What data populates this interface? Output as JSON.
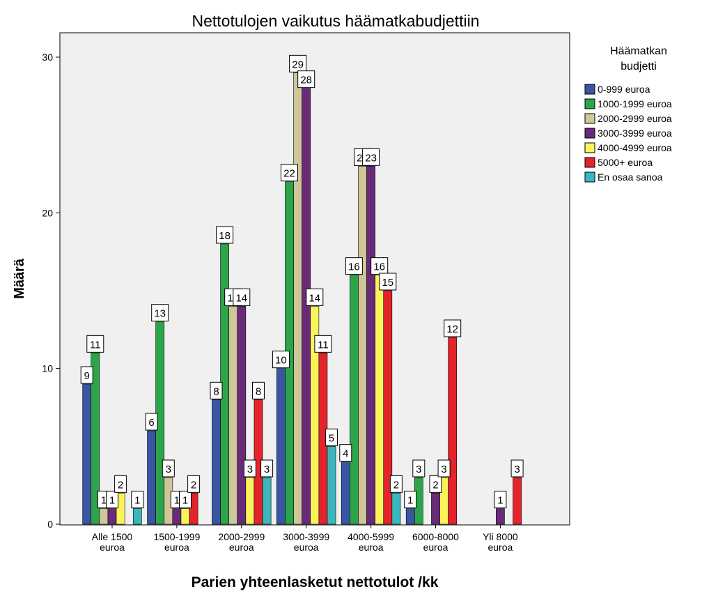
{
  "chart_data": {
    "type": "bar",
    "title": "Nettotulojen vaikutus häämatkabudjettiin",
    "xlabel": "Parien yhteenlasketut nettotulot /kk",
    "ylabel": "Määrä",
    "ylim": [
      0,
      30
    ],
    "yticks": [
      0,
      10,
      20,
      30
    ],
    "grid": false,
    "legend_position": "right",
    "legend_title": [
      "Häämatkan",
      "budjetti"
    ],
    "categories": [
      [
        "Alle 1500",
        "euroa"
      ],
      [
        "1500-1999",
        "euroa"
      ],
      [
        "2000-2999",
        "euroa"
      ],
      [
        "3000-3999",
        "euroa"
      ],
      [
        "4000-5999",
        "euroa"
      ],
      [
        "6000-8000",
        "euroa"
      ],
      [
        "Yli 8000",
        "euroa"
      ]
    ],
    "series": [
      {
        "name": "0-999 euroa",
        "color": "#3a55a4",
        "values": [
          9,
          6,
          8,
          10,
          4,
          1,
          null
        ]
      },
      {
        "name": "1000-1999 euroa",
        "color": "#2ca54a",
        "values": [
          11,
          13,
          18,
          22,
          16,
          3,
          null
        ]
      },
      {
        "name": "2000-2999 euroa",
        "color": "#cfc79a",
        "values": [
          1,
          3,
          14,
          29,
          23,
          null,
          null
        ]
      },
      {
        "name": "3000-3999 euroa",
        "color": "#6a2a7a",
        "values": [
          1,
          1,
          14,
          28,
          23,
          2,
          1
        ]
      },
      {
        "name": "4000-4999 euroa",
        "color": "#fbf35c",
        "values": [
          2,
          1,
          3,
          14,
          16,
          3,
          null
        ]
      },
      {
        "name": "5000+ euroa",
        "color": "#e5232a",
        "values": [
          null,
          2,
          8,
          11,
          15,
          12,
          3
        ]
      },
      {
        "name": "En osaa sanoa",
        "color": "#3ab7bd",
        "values": [
          1,
          null,
          3,
          5,
          2,
          null,
          null
        ]
      }
    ]
  },
  "colors": {
    "plot_background": "#f0f0f0",
    "axis": "#000000"
  }
}
